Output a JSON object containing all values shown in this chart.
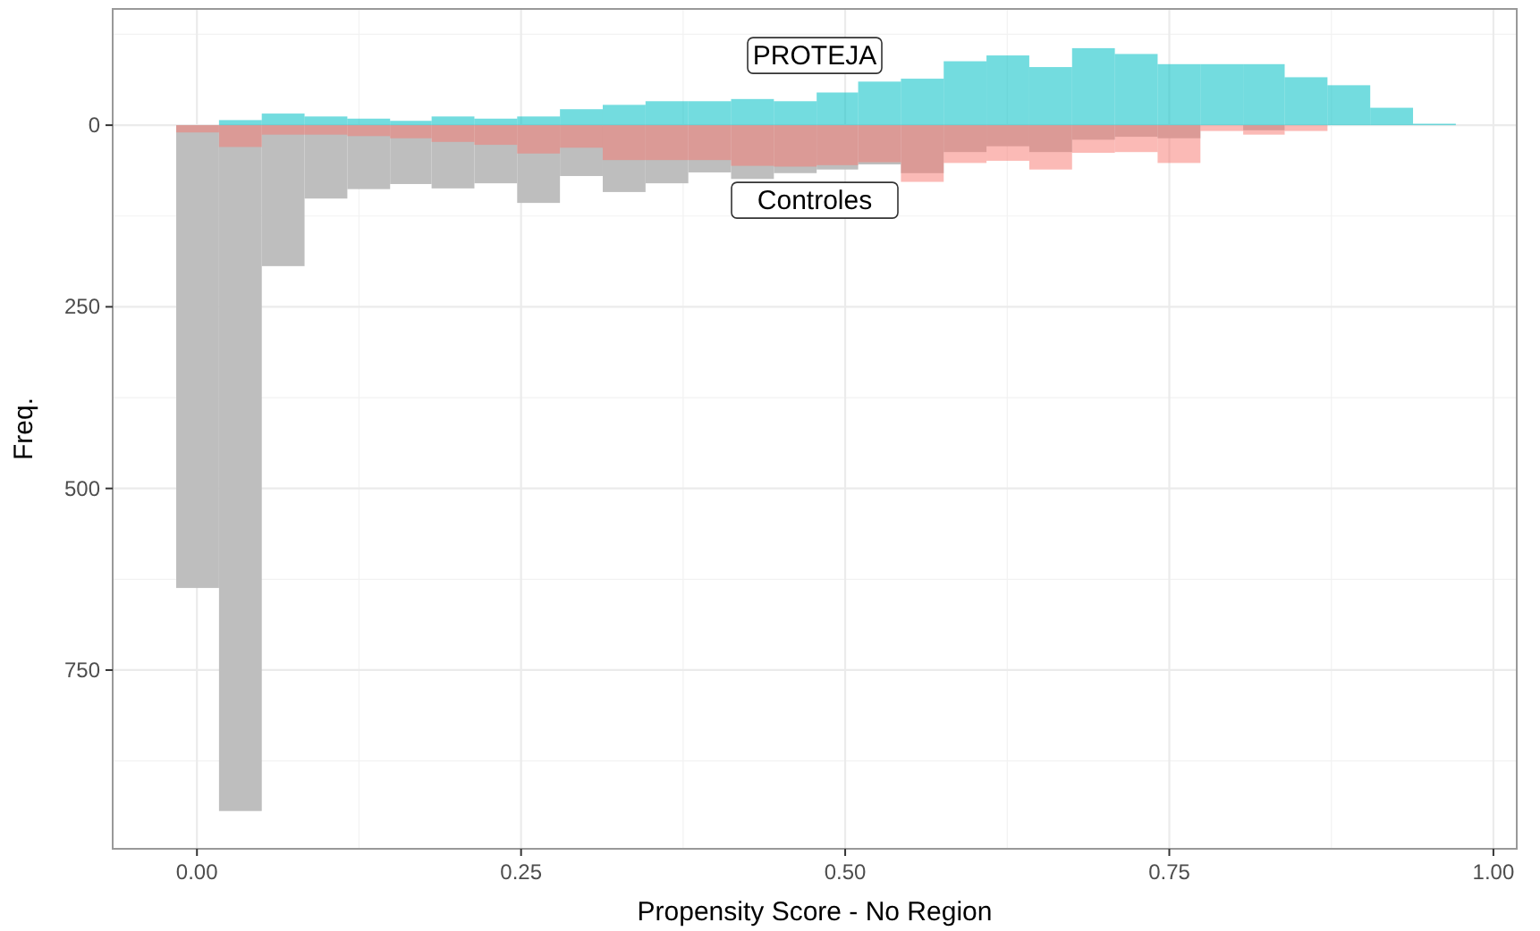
{
  "chart_data": {
    "type": "histogram",
    "xlabel": "Propensity Score - No Region",
    "ylabel": "Freq.",
    "bins": [
      -0.016,
      0.017,
      0.05,
      0.083,
      0.116,
      0.149,
      0.181,
      0.214,
      0.247,
      0.28,
      0.313,
      0.346,
      0.379,
      0.412,
      0.445,
      0.478,
      0.51,
      0.543,
      0.576,
      0.609,
      0.642,
      0.675,
      0.708,
      0.741,
      0.774,
      0.807,
      0.839,
      0.872,
      0.905,
      0.938,
      0.971
    ],
    "series": [
      {
        "color": "#bebebe",
        "values": [
          637,
          944,
          194,
          101,
          88,
          81,
          87,
          80,
          107,
          70,
          92,
          80,
          65,
          74,
          66,
          61,
          54,
          66,
          37,
          29,
          37,
          20,
          16,
          18,
          null,
          7,
          null,
          0,
          0,
          0
        ]
      },
      {
        "name": "Controles",
        "color": "#f8766d",
        "values": [
          10,
          30,
          13,
          13,
          15,
          18,
          23,
          27,
          39,
          31,
          48,
          48,
          48,
          56,
          57,
          55,
          51,
          78,
          52,
          49,
          61,
          38,
          37,
          52,
          8,
          13,
          8,
          0,
          0,
          0
        ]
      },
      {
        "name": "PROTEJA",
        "color": "#00bfc4",
        "values": [
          0,
          -7,
          -16,
          -12,
          -9,
          -6,
          -12,
          -9,
          -12,
          -22,
          -28,
          -33,
          -33,
          -36,
          -33,
          -45,
          -60,
          -64,
          -88,
          -96,
          -80,
          -106,
          -98,
          -84,
          -84,
          -84,
          -66,
          -55,
          -24,
          -2
        ]
      }
    ],
    "xlim": [
      -0.065,
      1.018
    ],
    "xticks": [
      {
        "value": 0,
        "label": "0.00"
      },
      {
        "value": 0.25,
        "label": "0.25"
      },
      {
        "value": 0.5,
        "label": "0.50"
      },
      {
        "value": 0.75,
        "label": "0.75"
      },
      {
        "value": 1,
        "label": "1.00"
      }
    ],
    "ylim": [
      996,
      -160
    ],
    "yticks": [
      0,
      250,
      500,
      750
    ],
    "grid": true
  }
}
